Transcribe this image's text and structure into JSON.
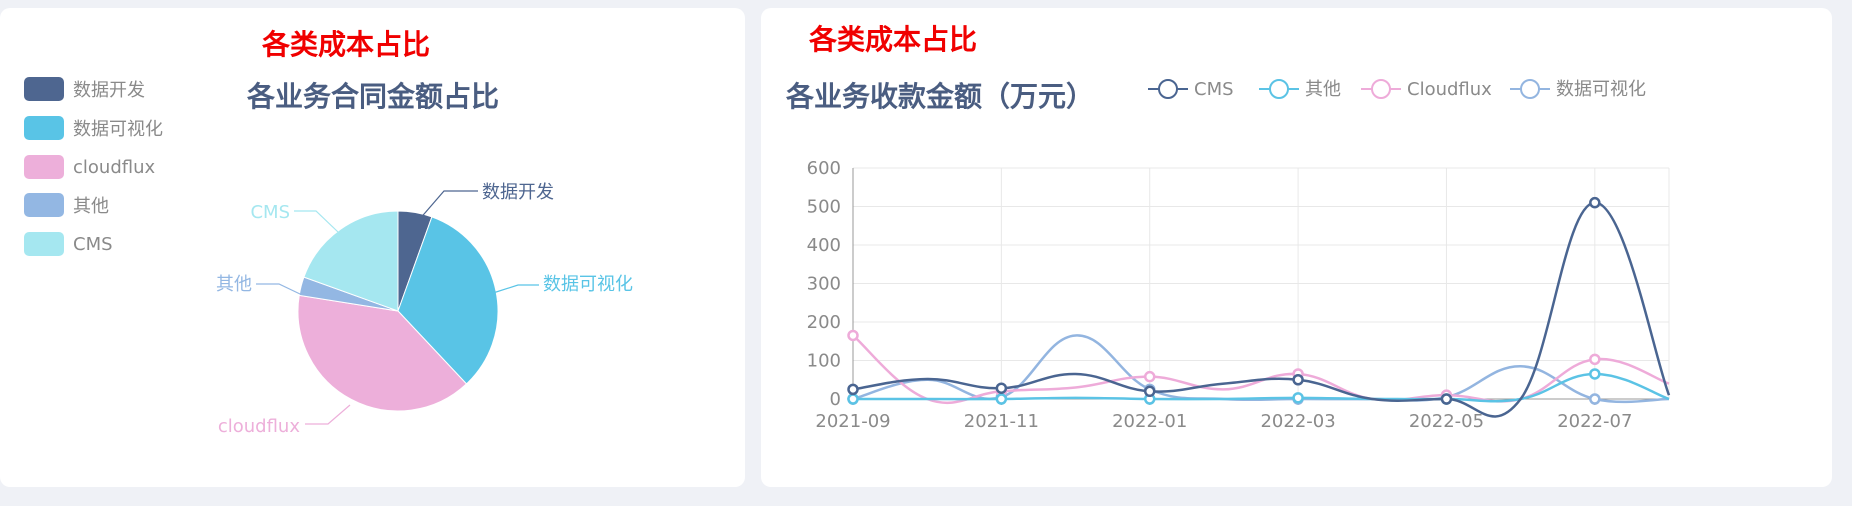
{
  "colors": {
    "cms_line": "#4a6591",
    "data_viz": "#5bc3e5",
    "cloudflux": "#eeabd9",
    "other": "#93b5e0",
    "cms_pie": "#a5e7f0",
    "data_dev": "#4a6591"
  },
  "left_panel": {
    "heading": "各类成本占比",
    "legend": [
      {
        "label": "数据开发",
        "color": "#4e6690"
      },
      {
        "label": "数据可视化",
        "color": "#59c4e6"
      },
      {
        "label": "cloudflux",
        "color": "#edafda"
      },
      {
        "label": "其他",
        "color": "#93b7e3"
      },
      {
        "label": "CMS",
        "color": "#a5e7f0"
      }
    ]
  },
  "right_panel": {
    "heading": "各类成本占比"
  },
  "chart_data": [
    {
      "type": "pie",
      "title": "各业务合同金额占比",
      "slices": [
        {
          "label": "数据开发",
          "value": 5.5,
          "color": "#4e6690"
        },
        {
          "label": "数据可视化",
          "value": 32.5,
          "color": "#59c4e6"
        },
        {
          "label": "cloudflux",
          "value": 39.5,
          "color": "#edafda"
        },
        {
          "label": "其他",
          "value": 3.0,
          "color": "#93b7e3"
        },
        {
          "label": "CMS",
          "value": 19.5,
          "color": "#a5e7f0"
        }
      ]
    },
    {
      "type": "line",
      "title": "各业务收款金额（万元）",
      "x": [
        "2021-09",
        "2021-10",
        "2021-11",
        "2021-12",
        "2022-01",
        "2022-02",
        "2022-03",
        "2022-04",
        "2022-05",
        "2022-06",
        "2022-07",
        "2022-08"
      ],
      "xticks": [
        "2021-09",
        "2021-11",
        "2022-01",
        "2022-03",
        "2022-05",
        "2022-07"
      ],
      "ylim": [
        0,
        600
      ],
      "yticks": [
        0,
        100,
        200,
        300,
        400,
        500,
        600
      ],
      "series": [
        {
          "name": "CMS",
          "color": "#4a6591",
          "values": [
            25,
            52,
            28,
            65,
            20,
            40,
            50,
            0,
            0,
            0,
            510,
            10
          ]
        },
        {
          "name": "其他",
          "color": "#5bc3e5",
          "values": [
            0,
            0,
            0,
            3,
            0,
            0,
            3,
            0,
            0,
            0,
            65,
            0
          ]
        },
        {
          "name": "Cloudflux",
          "color": "#eeabd9",
          "values": [
            165,
            0,
            20,
            30,
            58,
            25,
            65,
            0,
            10,
            0,
            103,
            40
          ]
        },
        {
          "name": "数据可视化",
          "color": "#93b5e0",
          "values": [
            0,
            50,
            5,
            165,
            25,
            0,
            0,
            0,
            5,
            85,
            0,
            0
          ]
        }
      ]
    }
  ]
}
